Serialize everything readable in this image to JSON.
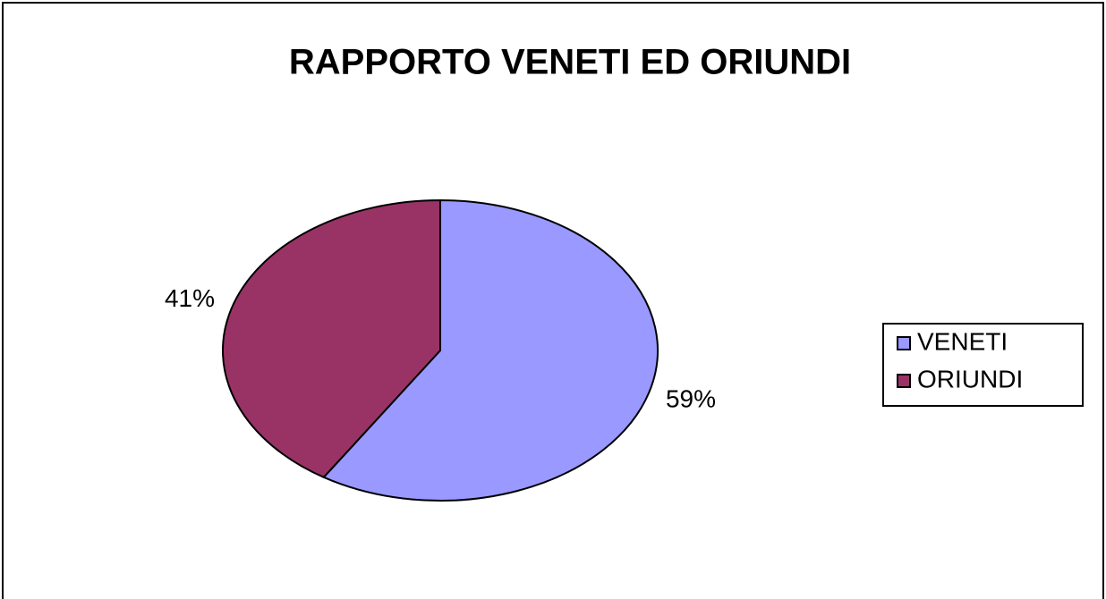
{
  "chart_data": {
    "type": "pie",
    "title": "RAPPORTO VENETI ED ORIUNDI",
    "categories": [
      "VENETI",
      "ORIUNDI"
    ],
    "values": [
      59,
      41
    ],
    "value_labels": [
      "59%",
      "41%"
    ],
    "colors": [
      "#9999ff",
      "#993366"
    ],
    "legend": "right"
  }
}
